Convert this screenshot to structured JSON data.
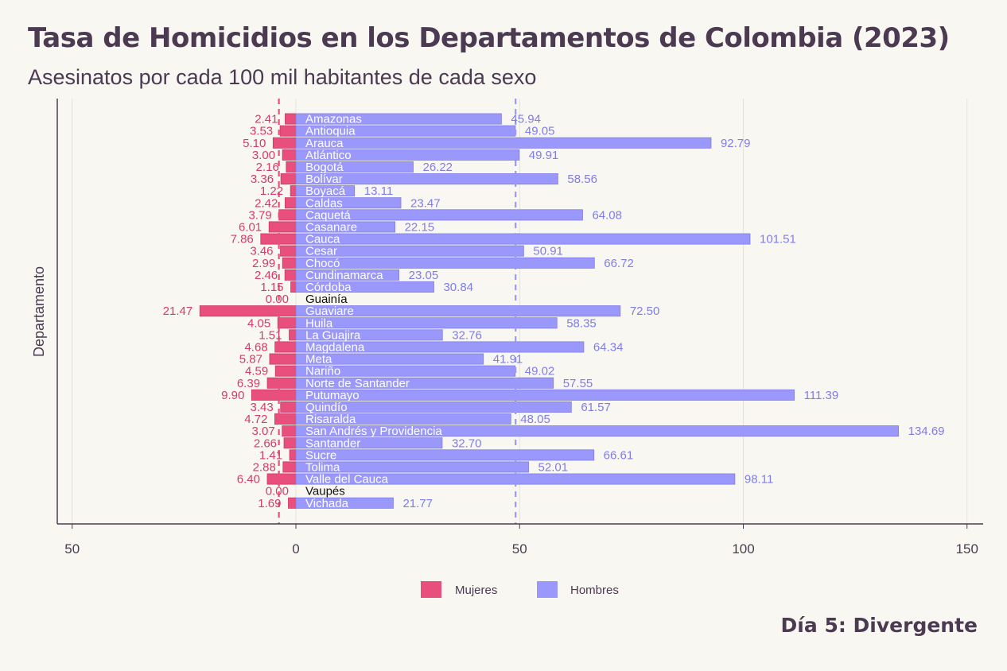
{
  "title": "Tasa de Homicidios en los Departamentos de Colombia (2023)",
  "subtitle": "Asesinatos por cada 100 mil habitantes de cada sexo",
  "credit": "Día 5: Divergente",
  "colors": {
    "mujeres": "#e94f7c",
    "hombres": "#9a99fb",
    "mujeres_text": "#d43d63",
    "hombres_text": "#7f7de8",
    "axis": "#4b3a52"
  },
  "chart_data": {
    "type": "bar",
    "orientation": "horizontal-diverging",
    "ylabel": "Departamento",
    "xlim": [
      -50,
      150
    ],
    "x_ticks": [
      -50,
      0,
      50,
      100,
      150
    ],
    "x_tick_labels": [
      "50",
      "0",
      "50",
      "100",
      "150"
    ],
    "grid": true,
    "legend_position": "bottom",
    "reference_lines": {
      "mujeres": -3.8,
      "hombres": 49.1
    },
    "categories": [
      "Amazonas",
      "Antioquia",
      "Arauca",
      "Atlántico",
      "Bogotá",
      "Bolívar",
      "Boyacá",
      "Caldas",
      "Caquetá",
      "Casanare",
      "Cauca",
      "Cesar",
      "Chocó",
      "Cundinamarca",
      "Córdoba",
      "Guainía",
      "Guaviare",
      "Huila",
      "La Guajira",
      "Magdalena",
      "Meta",
      "Nariño",
      "Norte de Santander",
      "Putumayo",
      "Quindío",
      "Risaralda",
      "San Andrés y Providencia",
      "Santander",
      "Sucre",
      "Tolima",
      "Valle del Cauca",
      "Vaupés",
      "Vichada"
    ],
    "series": [
      {
        "name": "Mujeres",
        "values": [
          2.41,
          3.53,
          5.1,
          3.0,
          2.16,
          3.36,
          1.22,
          2.42,
          3.79,
          6.01,
          7.86,
          3.46,
          2.99,
          2.46,
          1.15,
          0.0,
          21.47,
          4.05,
          1.51,
          4.68,
          5.87,
          4.59,
          6.39,
          9.9,
          3.43,
          4.72,
          3.07,
          2.66,
          1.41,
          2.88,
          6.4,
          0.0,
          1.69
        ],
        "labels": [
          "2.41",
          "3.53",
          "5.10",
          "3.00",
          "2.16",
          "3.36",
          "1.22",
          "2.42",
          "3.79",
          "6.01",
          "7.86",
          "3.46",
          "2.99",
          "2.46",
          "1.15",
          "0.00",
          "21.47",
          "4.05",
          "1.51",
          "4.68",
          "5.87",
          "4.59",
          "6.39",
          "9.90",
          "3.43",
          "4.72",
          "3.07",
          "2.66",
          "1.41",
          "2.88",
          "6.40",
          "0.00",
          "1.69"
        ]
      },
      {
        "name": "Hombres",
        "values": [
          45.94,
          49.05,
          92.79,
          49.91,
          26.22,
          58.56,
          13.11,
          23.47,
          64.08,
          22.15,
          101.51,
          50.91,
          66.72,
          23.05,
          30.84,
          0.0,
          72.5,
          58.35,
          32.76,
          64.34,
          41.91,
          49.02,
          57.55,
          111.39,
          61.57,
          48.05,
          134.69,
          32.7,
          66.61,
          52.01,
          98.11,
          0.0,
          21.77
        ],
        "labels": [
          "45.94",
          "49.05",
          "92.79",
          "49.91",
          "26.22",
          "58.56",
          "13.11",
          "23.47",
          "64.08",
          "22.15",
          "101.51",
          "50.91",
          "66.72",
          "23.05",
          "30.84",
          "",
          "72.50",
          "58.35",
          "32.76",
          "64.34",
          "41.91",
          "49.02",
          "57.55",
          "111.39",
          "61.57",
          "48.05",
          "134.69",
          "32.70",
          "66.61",
          "52.01",
          "98.11",
          "",
          "21.77"
        ]
      }
    ]
  }
}
